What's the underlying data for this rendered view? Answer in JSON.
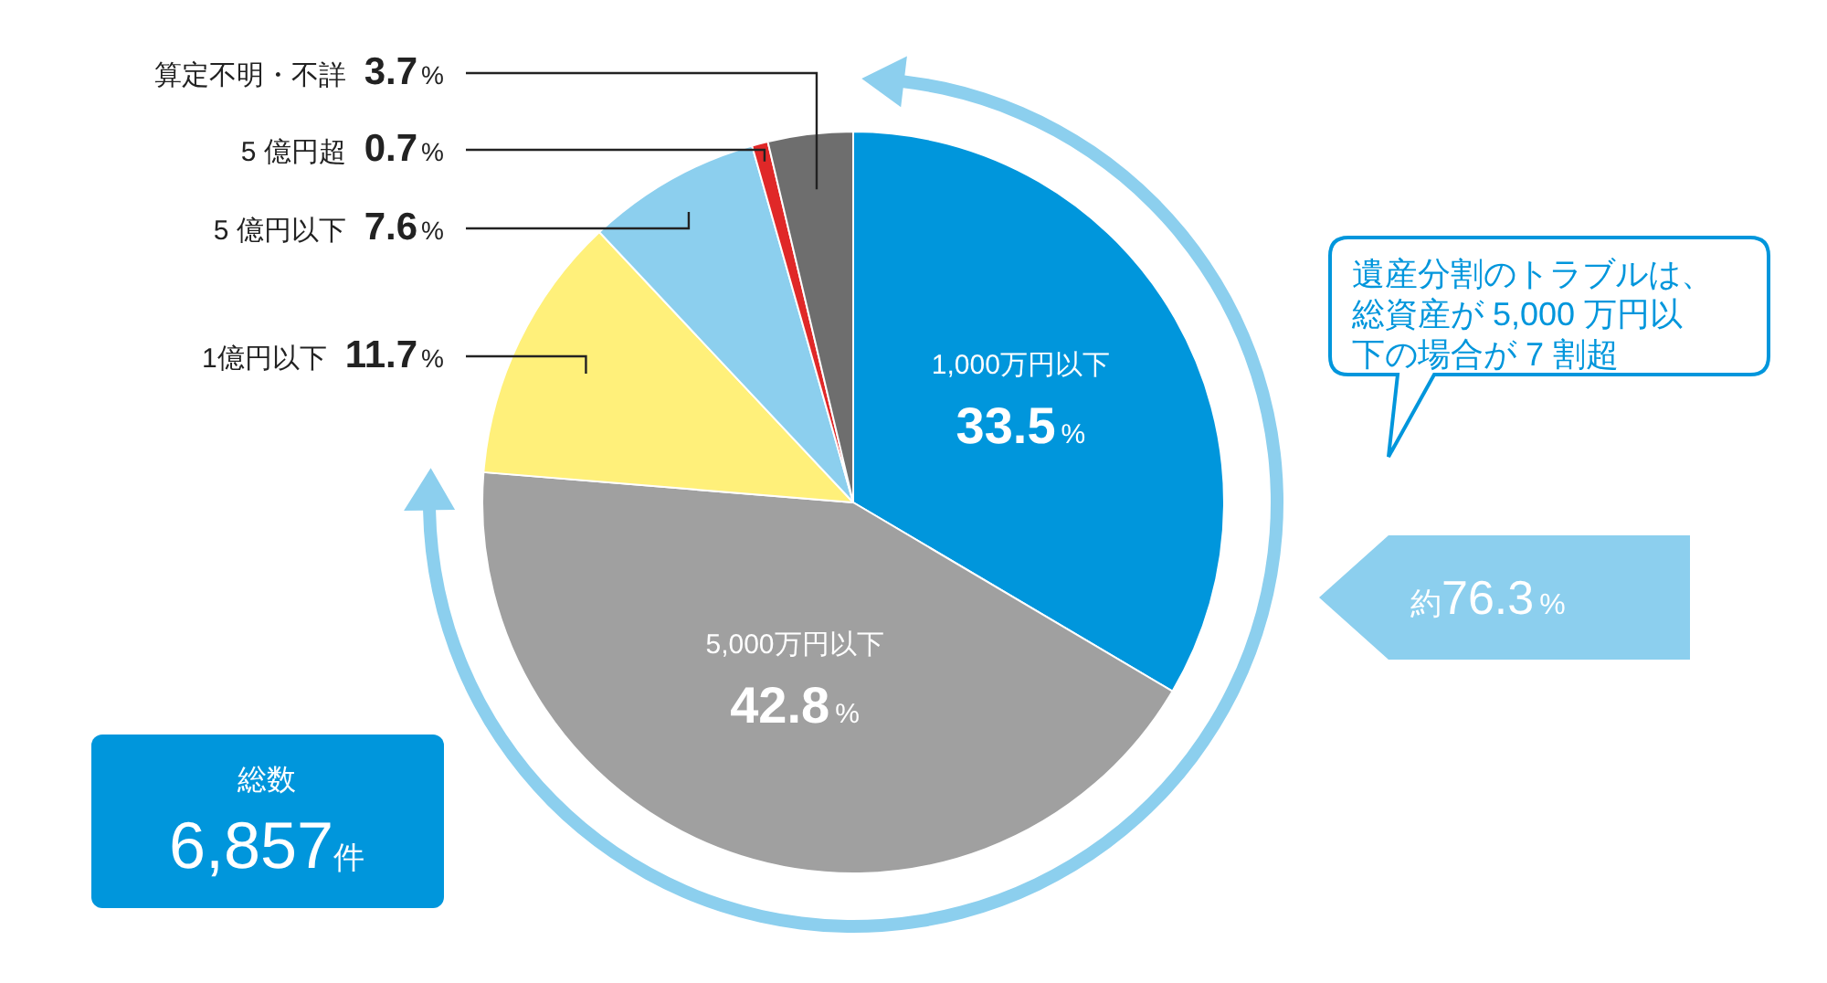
{
  "chart_data": {
    "type": "pie",
    "categories": [
      "1,000万円以下",
      "5,000万円以下",
      "1億円以下",
      "5 億円以下",
      "5 億円超",
      "算定不明・不詳"
    ],
    "values": [
      33.5,
      42.8,
      11.7,
      7.6,
      0.7,
      3.7
    ],
    "colors": [
      "#0096dc",
      "#a0a0a0",
      "#fff07a",
      "#8ccfee",
      "#e02828",
      "#6e6e6e"
    ],
    "value_labels": [
      "33.5%",
      "42.8%",
      "11.7%",
      "7.6%",
      "0.7%",
      "3.7%"
    ],
    "annotations": [
      "遺産分割のトラブルは、総資産が 5,000 万円以下の場合が 7 割超",
      "約76.3%",
      "総数",
      "6,857件"
    ]
  }
}
